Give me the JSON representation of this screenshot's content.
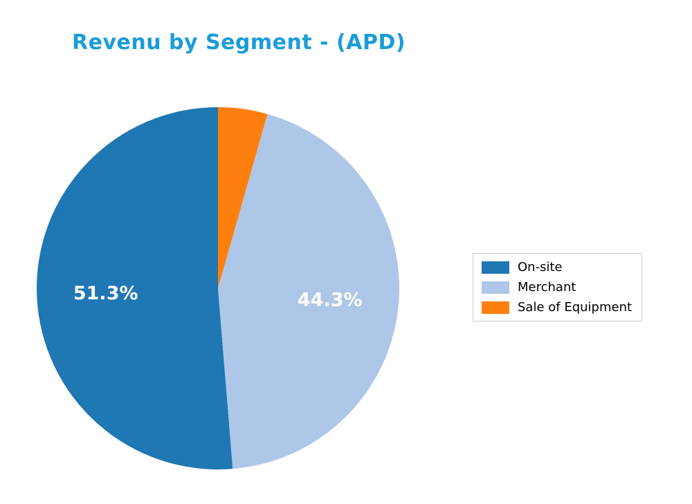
{
  "title": "Revenu by Segment - (APD)",
  "title_color": "#1a9cd8",
  "chart_data": {
    "type": "pie",
    "labels": [
      "On-site",
      "Merchant",
      "Sale of Equipment"
    ],
    "values": [
      51.3,
      44.3,
      4.4
    ],
    "slice_labels": [
      "51.3%",
      "44.3%",
      ""
    ],
    "colors": [
      "#1f77b4",
      "#aec7e8",
      "#ff7f0e"
    ],
    "slice_label_color": "#ffffff",
    "start_angle": 90,
    "counterclockwise": true,
    "legend_position": "center right",
    "legend_border_color": "#cccccc"
  }
}
